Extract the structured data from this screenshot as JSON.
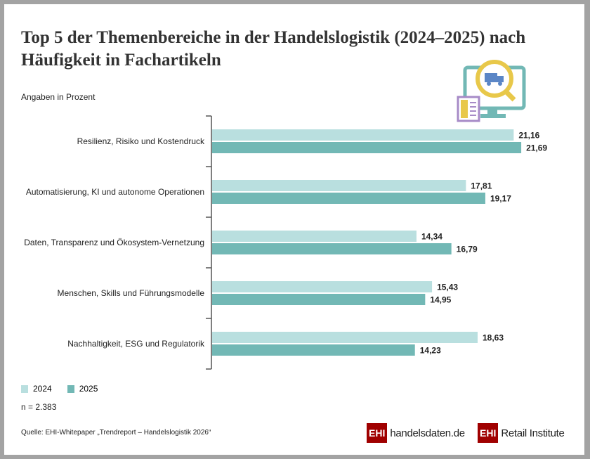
{
  "chart_data": {
    "type": "bar",
    "orientation": "horizontal",
    "title": "Top 5 der Themenbereiche in der Handelslogistik (2024–2025) nach Häufigkeit in Fachartikeln",
    "subtitle": "Angaben in Prozent",
    "categories": [
      "Resilienz, Risiko und Kostendruck",
      "Automatisierung, KI und autonome Operationen",
      "Daten, Transparenz und Ökosystem-Vernetzung",
      "Menschen, Skills und Führungsmodelle",
      "Nachhaltigkeit, ESG und Regulatorik"
    ],
    "series": [
      {
        "name": "2024",
        "color": "#b9dfdf",
        "values": [
          21.16,
          17.81,
          14.34,
          15.43,
          18.63
        ],
        "labels": [
          "21,16",
          "17,81",
          "14,34",
          "15,43",
          "18,63"
        ]
      },
      {
        "name": "2025",
        "color": "#72b8b5",
        "values": [
          21.69,
          19.17,
          16.79,
          14.95,
          14.23
        ],
        "labels": [
          "21,69",
          "19,17",
          "16,79",
          "14,95",
          "14,23"
        ]
      }
    ],
    "xlim": [
      0,
      25
    ],
    "grid": false,
    "legend": "bottom-left"
  },
  "note": "n = 2.383",
  "source": "Quelle: EHI-Whitepaper „Trendreport – Handelslogistik 2026“",
  "logos": {
    "ehi": "EHI",
    "handelsdaten": "handelsdaten.de",
    "retail": "Retail Institute"
  }
}
